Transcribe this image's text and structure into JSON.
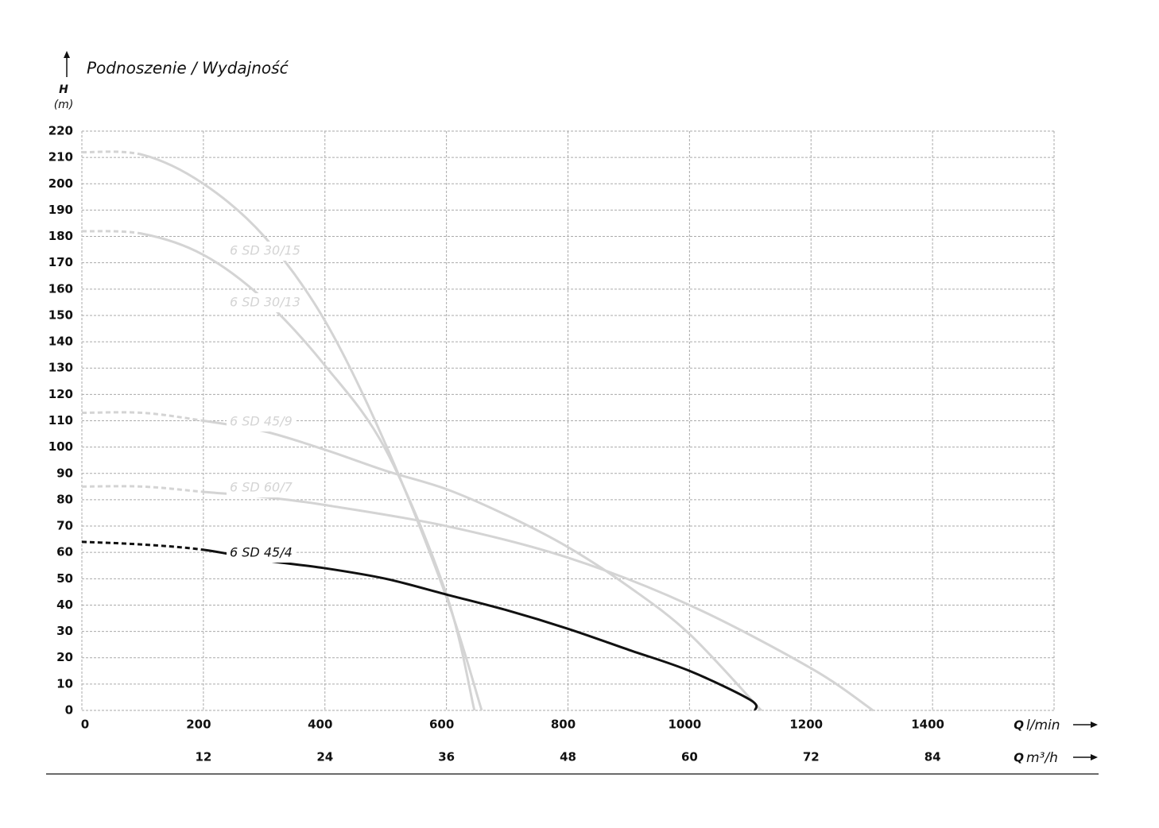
{
  "chart_data": {
    "type": "line",
    "title": "Podnoszenie / Wydajność",
    "y_label": {
      "symbol": "H",
      "unit": "(m)"
    },
    "x_label": {
      "symbol": "Q",
      "unit": "l/min"
    },
    "x2_label": {
      "symbol": "Q",
      "unit": "m³/h"
    },
    "xlim": [
      0,
      1600
    ],
    "xticks": [
      0,
      200,
      400,
      600,
      800,
      1000,
      1200,
      1400
    ],
    "x2lim": [
      0,
      96
    ],
    "x2ticks": [
      12,
      24,
      36,
      48,
      60,
      72,
      84
    ],
    "ylim": [
      0,
      220
    ],
    "yticks": [
      0,
      10,
      20,
      30,
      40,
      50,
      60,
      70,
      80,
      90,
      100,
      110,
      120,
      130,
      140,
      150,
      160,
      170,
      180,
      190,
      200,
      210,
      220
    ],
    "grid": true,
    "series": [
      {
        "name": "6 SD 30/15",
        "color": "#d4d4d4",
        "dashed_until_x": 100,
        "x": [
          0,
          100,
          200,
          300,
          400,
          500,
          600,
          658
        ],
        "values": [
          212,
          211,
          200,
          180,
          148,
          101,
          43,
          0
        ]
      },
      {
        "name": "6 SD 30/13",
        "color": "#d4d4d4",
        "dashed_until_x": 100,
        "x": [
          0,
          100,
          200,
          300,
          400,
          500,
          600,
          646
        ],
        "values": [
          182,
          181,
          173,
          156,
          131,
          99,
          44,
          0
        ]
      },
      {
        "name": "6 SD 45/9",
        "color": "#d4d4d4",
        "dashed_until_x": 200,
        "x": [
          0,
          100,
          200,
          300,
          400,
          500,
          600,
          700,
          800,
          900,
          1000,
          1118
        ],
        "values": [
          113,
          113,
          110,
          106,
          99,
          91,
          84,
          74,
          62,
          47,
          29,
          0
        ]
      },
      {
        "name": "6 SD 60/7",
        "color": "#d4d4d4",
        "dashed_until_x": 200,
        "x": [
          0,
          100,
          200,
          300,
          400,
          600,
          800,
          1000,
          1200,
          1302
        ],
        "values": [
          85,
          85,
          83,
          81,
          78,
          70,
          58,
          40,
          16,
          0
        ]
      },
      {
        "name": "6 SD 45/4",
        "color": "#111111",
        "dashed_until_x": 200,
        "x": [
          0,
          100,
          200,
          300,
          400,
          500,
          600,
          700,
          800,
          900,
          1000,
          1100,
          1108
        ],
        "values": [
          64,
          63,
          61,
          57,
          54,
          50,
          44,
          38,
          31,
          23,
          15,
          4,
          0
        ]
      }
    ]
  }
}
